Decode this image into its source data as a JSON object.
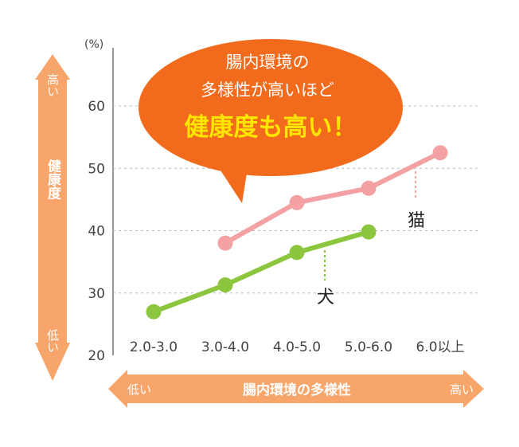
{
  "colors": {
    "arrow": "#f7a56a",
    "bubble": "#f26a1b",
    "cat": "#f4a1a4",
    "dog": "#8cc63f",
    "grid": "#bbbbbb",
    "emph": "#ffe600"
  },
  "y_axis": {
    "unit": "(%)",
    "arrow_top": "高い",
    "arrow_bottom": "低い",
    "arrow_title": "健康度"
  },
  "x_axis": {
    "arrow_left": "低い",
    "arrow_right": "高い",
    "arrow_title": "腸内環境の多様性"
  },
  "bubble": {
    "line1": "腸内環境の",
    "line2": "多様性が高いほど",
    "line3": "健康度も高い！"
  },
  "chart_data": {
    "type": "line",
    "categories": [
      "2.0-3.0",
      "3.0-4.0",
      "4.0-5.0",
      "5.0-6.0",
      "6.0以上"
    ],
    "ylim": [
      20,
      60
    ],
    "yticks": [
      20,
      30,
      40,
      50,
      60
    ],
    "grid": true,
    "series": [
      {
        "name": "猫",
        "color": "#f4a1a4",
        "values": [
          null,
          38,
          44.5,
          46.8,
          52.5
        ]
      },
      {
        "name": "犬",
        "color": "#8cc63f",
        "values": [
          27,
          31.3,
          36.5,
          39.8,
          null
        ]
      }
    ]
  }
}
